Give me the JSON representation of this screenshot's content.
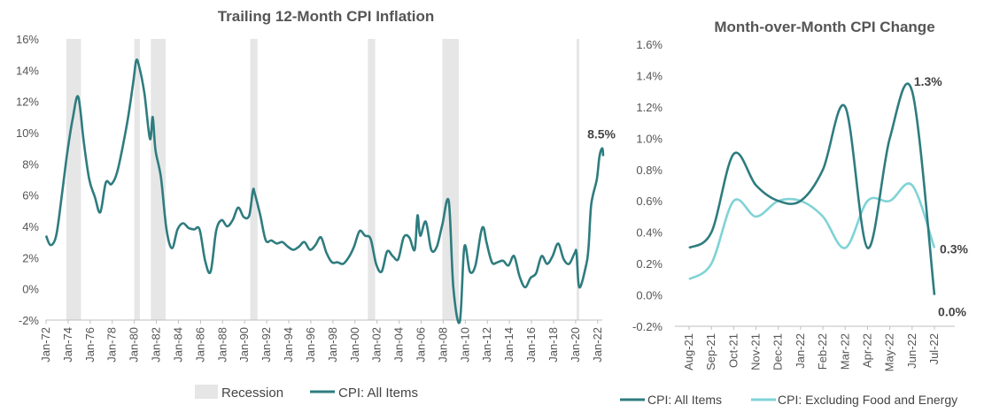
{
  "colors": {
    "all_items": "#2e7c7f",
    "core": "#7fd3d6",
    "recession": "#e6e6e6",
    "axis": "#bfbfbf"
  },
  "chart_data": [
    {
      "type": "line",
      "title": "Trailing 12-Month CPI Inflation",
      "xlabel": "",
      "ylabel": "",
      "ylim": [
        -2,
        16
      ],
      "y_ticks": [
        "-2%",
        "0%",
        "2%",
        "4%",
        "6%",
        "8%",
        "10%",
        "12%",
        "14%",
        "16%"
      ],
      "x_ticks": [
        "Jan-72",
        "Jan-74",
        "Jan-76",
        "Jan-78",
        "Jan-80",
        "Jan-82",
        "Jan-84",
        "Jan-86",
        "Jan-88",
        "Jan-90",
        "Jan-92",
        "Jan-94",
        "Jan-96",
        "Jan-98",
        "Jan-00",
        "Jan-02",
        "Jan-04",
        "Jan-06",
        "Jan-08",
        "Jan-10",
        "Jan-12",
        "Jan-14",
        "Jan-16",
        "Jan-18",
        "Jan-20",
        "Jan-22"
      ],
      "x_range": [
        "1972-01",
        "2022-06"
      ],
      "recessions": [
        [
          "1973-11",
          "1975-03"
        ],
        [
          "1980-01",
          "1980-07"
        ],
        [
          "1981-07",
          "1982-11"
        ],
        [
          "1990-07",
          "1991-03"
        ],
        [
          "2001-03",
          "2001-11"
        ],
        [
          "2007-12",
          "2009-06"
        ],
        [
          "2020-02",
          "2020-04"
        ]
      ],
      "series": [
        {
          "name": "CPI: All Items",
          "points": [
            [
              "1972-01",
              3.4
            ],
            [
              "1972-06",
              2.8
            ],
            [
              "1972-12",
              3.4
            ],
            [
              "1973-06",
              5.9
            ],
            [
              "1973-12",
              8.7
            ],
            [
              "1974-06",
              10.9
            ],
            [
              "1974-12",
              12.3
            ],
            [
              "1975-06",
              9.4
            ],
            [
              "1975-12",
              7.0
            ],
            [
              "1976-06",
              5.9
            ],
            [
              "1976-12",
              4.9
            ],
            [
              "1977-06",
              6.8
            ],
            [
              "1977-12",
              6.7
            ],
            [
              "1978-06",
              7.4
            ],
            [
              "1978-12",
              9.0
            ],
            [
              "1979-06",
              10.9
            ],
            [
              "1979-12",
              13.3
            ],
            [
              "1980-03",
              14.6
            ],
            [
              "1980-06",
              14.3
            ],
            [
              "1980-12",
              12.5
            ],
            [
              "1981-06",
              9.6
            ],
            [
              "1981-09",
              11.0
            ],
            [
              "1981-12",
              8.9
            ],
            [
              "1982-06",
              7.1
            ],
            [
              "1982-12",
              3.8
            ],
            [
              "1983-06",
              2.6
            ],
            [
              "1983-12",
              3.8
            ],
            [
              "1984-06",
              4.2
            ],
            [
              "1984-12",
              3.9
            ],
            [
              "1985-06",
              3.8
            ],
            [
              "1985-12",
              3.8
            ],
            [
              "1986-06",
              1.8
            ],
            [
              "1986-12",
              1.1
            ],
            [
              "1987-06",
              3.7
            ],
            [
              "1987-12",
              4.4
            ],
            [
              "1988-06",
              4.0
            ],
            [
              "1988-12",
              4.4
            ],
            [
              "1989-06",
              5.2
            ],
            [
              "1989-12",
              4.6
            ],
            [
              "1990-06",
              4.7
            ],
            [
              "1990-10",
              6.3
            ],
            [
              "1990-12",
              6.1
            ],
            [
              "1991-06",
              4.7
            ],
            [
              "1991-12",
              3.1
            ],
            [
              "1992-06",
              3.1
            ],
            [
              "1992-12",
              2.9
            ],
            [
              "1993-06",
              3.0
            ],
            [
              "1993-12",
              2.7
            ],
            [
              "1994-06",
              2.5
            ],
            [
              "1994-12",
              2.7
            ],
            [
              "1995-06",
              3.0
            ],
            [
              "1995-12",
              2.5
            ],
            [
              "1996-06",
              2.8
            ],
            [
              "1996-12",
              3.3
            ],
            [
              "1997-06",
              2.3
            ],
            [
              "1997-12",
              1.7
            ],
            [
              "1998-06",
              1.7
            ],
            [
              "1998-12",
              1.6
            ],
            [
              "1999-06",
              2.0
            ],
            [
              "1999-12",
              2.7
            ],
            [
              "2000-06",
              3.7
            ],
            [
              "2000-12",
              3.4
            ],
            [
              "2001-06",
              3.2
            ],
            [
              "2001-12",
              1.6
            ],
            [
              "2002-06",
              1.1
            ],
            [
              "2002-12",
              2.4
            ],
            [
              "2003-06",
              2.1
            ],
            [
              "2003-12",
              1.9
            ],
            [
              "2004-06",
              3.3
            ],
            [
              "2004-12",
              3.3
            ],
            [
              "2005-06",
              2.5
            ],
            [
              "2005-09",
              4.7
            ],
            [
              "2005-12",
              3.4
            ],
            [
              "2006-06",
              4.3
            ],
            [
              "2006-12",
              2.5
            ],
            [
              "2007-06",
              2.7
            ],
            [
              "2007-12",
              4.1
            ],
            [
              "2008-07",
              5.6
            ],
            [
              "2008-12",
              0.1
            ],
            [
              "2009-07",
              -2.1
            ],
            [
              "2009-12",
              2.7
            ],
            [
              "2010-06",
              1.1
            ],
            [
              "2010-12",
              1.5
            ],
            [
              "2011-06",
              3.6
            ],
            [
              "2011-09",
              3.9
            ],
            [
              "2011-12",
              3.0
            ],
            [
              "2012-06",
              1.7
            ],
            [
              "2012-12",
              1.7
            ],
            [
              "2013-06",
              1.8
            ],
            [
              "2013-12",
              1.5
            ],
            [
              "2014-06",
              2.1
            ],
            [
              "2014-12",
              0.8
            ],
            [
              "2015-06",
              0.1
            ],
            [
              "2015-12",
              0.7
            ],
            [
              "2016-06",
              1.0
            ],
            [
              "2016-12",
              2.1
            ],
            [
              "2017-06",
              1.6
            ],
            [
              "2017-12",
              2.1
            ],
            [
              "2018-06",
              2.9
            ],
            [
              "2018-12",
              1.9
            ],
            [
              "2019-06",
              1.6
            ],
            [
              "2019-12",
              2.3
            ],
            [
              "2020-02",
              2.3
            ],
            [
              "2020-05",
              0.1
            ],
            [
              "2020-12",
              1.4
            ],
            [
              "2021-03",
              2.6
            ],
            [
              "2021-06",
              5.4
            ],
            [
              "2021-12",
              7.0
            ],
            [
              "2022-03",
              8.5
            ],
            [
              "2022-06",
              9.0
            ],
            [
              "2022-07",
              8.5
            ]
          ]
        }
      ],
      "annotations": [
        {
          "x": "2022-07",
          "y": 8.5,
          "text": "8.5%"
        }
      ],
      "legend": [
        "Recession",
        "CPI: All Items"
      ],
      "legend_position": "bottom",
      "grid": false
    },
    {
      "type": "line",
      "title": "Month-over-Month CPI Change",
      "xlabel": "",
      "ylabel": "",
      "ylim": [
        -0.2,
        1.6
      ],
      "y_ticks": [
        "-0.2%",
        "0.0%",
        "0.2%",
        "0.4%",
        "0.6%",
        "0.8%",
        "1.0%",
        "1.2%",
        "1.4%",
        "1.6%"
      ],
      "categories": [
        "Aug-21",
        "Sep-21",
        "Oct-21",
        "Nov-21",
        "Dec-21",
        "Jan-22",
        "Feb-22",
        "Mar-22",
        "Apr-22",
        "May-22",
        "Jun-22",
        "Jul-22"
      ],
      "series": [
        {
          "name": "CPI: All Items",
          "values": [
            0.3,
            0.4,
            0.9,
            0.7,
            0.6,
            0.6,
            0.8,
            1.2,
            0.3,
            1.0,
            1.3,
            0.0
          ]
        },
        {
          "name": "CPI: Excluding Food and Energy",
          "values": [
            0.1,
            0.2,
            0.6,
            0.5,
            0.6,
            0.6,
            0.5,
            0.3,
            0.6,
            0.6,
            0.7,
            0.3
          ]
        }
      ],
      "annotations": [
        {
          "series": 0,
          "index": 10,
          "text": "1.3%"
        },
        {
          "series": 1,
          "index": 11,
          "text": "0.3%"
        },
        {
          "series": 0,
          "index": 11,
          "text": "0.0%"
        }
      ],
      "legend": [
        "CPI: All Items",
        "CPI: Excluding Food and Energy"
      ],
      "legend_position": "bottom",
      "grid": false
    }
  ]
}
